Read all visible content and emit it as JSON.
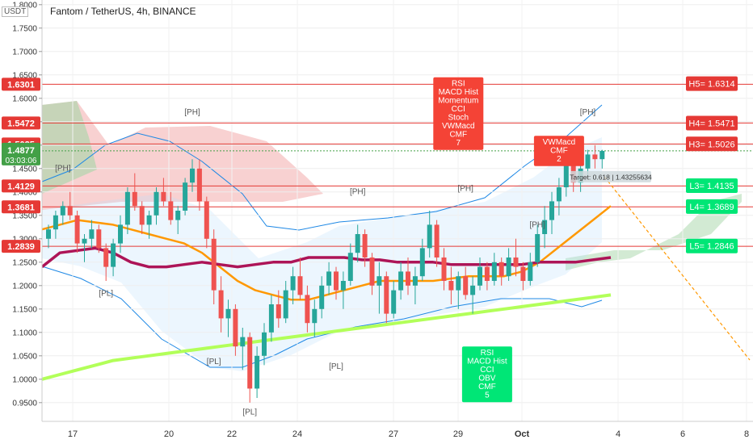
{
  "header": {
    "symbol_title": "Fantom / TetherUS, 4h, BINANCE",
    "currency": "USDT"
  },
  "colors": {
    "up": "#26a69a",
    "down": "#ef5350",
    "resistance": "#e53935",
    "support_tag": "#00e676",
    "sma200": "#ad1457",
    "ema_orange": "#ff9800",
    "lime_ma": "#b2ff59",
    "cloud_red": "#ef9a9a",
    "cloud_green": "#a5d6a7",
    "bollinger_blue": "#1e88e5",
    "price_tag": "#43a047",
    "divergence_bear": "#f44336",
    "divergence_bull": "#00e676"
  },
  "chart_data": {
    "type": "candlestick",
    "title": "Fantom / TetherUS, 4h, BINANCE",
    "ylabel": "USDT",
    "ylim": [
      0.91,
      1.81
    ],
    "y_ticks": [
      "1.8000",
      "1.7500",
      "1.7000",
      "1.6500",
      "1.6000",
      "1.5500",
      "1.5000",
      "1.4500",
      "1.4000",
      "1.3500",
      "1.3000",
      "1.2500",
      "1.2000",
      "1.1500",
      "1.1000",
      "1.0500",
      "1.0000",
      "0.9500"
    ],
    "x_ticks": [
      "17",
      "20",
      "22",
      "24",
      "27",
      "29",
      "Oct",
      "4",
      "6",
      "8"
    ],
    "candles": [
      [
        1.3,
        1.33,
        1.28,
        1.32
      ],
      [
        1.32,
        1.36,
        1.3,
        1.35
      ],
      [
        1.35,
        1.38,
        1.33,
        1.37
      ],
      [
        1.37,
        1.4,
        1.34,
        1.35
      ],
      [
        1.35,
        1.36,
        1.27,
        1.29
      ],
      [
        1.29,
        1.31,
        1.25,
        1.3
      ],
      [
        1.3,
        1.34,
        1.28,
        1.32
      ],
      [
        1.32,
        1.33,
        1.27,
        1.28
      ],
      [
        1.28,
        1.29,
        1.21,
        1.24
      ],
      [
        1.24,
        1.3,
        1.22,
        1.29
      ],
      [
        1.29,
        1.35,
        1.27,
        1.33
      ],
      [
        1.33,
        1.41,
        1.31,
        1.4
      ],
      [
        1.4,
        1.44,
        1.36,
        1.37
      ],
      [
        1.37,
        1.38,
        1.31,
        1.33
      ],
      [
        1.33,
        1.36,
        1.3,
        1.35
      ],
      [
        1.35,
        1.41,
        1.33,
        1.4
      ],
      [
        1.4,
        1.43,
        1.37,
        1.38
      ],
      [
        1.38,
        1.4,
        1.33,
        1.34
      ],
      [
        1.34,
        1.37,
        1.31,
        1.36
      ],
      [
        1.36,
        1.43,
        1.35,
        1.42
      ],
      [
        1.42,
        1.47,
        1.4,
        1.45
      ],
      [
        1.45,
        1.47,
        1.36,
        1.38
      ],
      [
        1.38,
        1.39,
        1.28,
        1.3
      ],
      [
        1.3,
        1.32,
        1.16,
        1.19
      ],
      [
        1.19,
        1.22,
        1.1,
        1.13
      ],
      [
        1.13,
        1.17,
        1.09,
        1.15
      ],
      [
        1.15,
        1.16,
        1.05,
        1.07
      ],
      [
        1.07,
        1.11,
        1.02,
        1.09
      ],
      [
        1.09,
        1.1,
        0.95,
        0.98
      ],
      [
        0.98,
        1.07,
        0.96,
        1.05
      ],
      [
        1.05,
        1.12,
        1.03,
        1.1
      ],
      [
        1.1,
        1.18,
        1.08,
        1.16
      ],
      [
        1.16,
        1.19,
        1.11,
        1.13
      ],
      [
        1.13,
        1.21,
        1.12,
        1.19
      ],
      [
        1.19,
        1.24,
        1.16,
        1.22
      ],
      [
        1.22,
        1.26,
        1.17,
        1.18
      ],
      [
        1.18,
        1.2,
        1.1,
        1.12
      ],
      [
        1.12,
        1.17,
        1.09,
        1.15
      ],
      [
        1.15,
        1.22,
        1.13,
        1.2
      ],
      [
        1.2,
        1.25,
        1.18,
        1.23
      ],
      [
        1.23,
        1.24,
        1.17,
        1.19
      ],
      [
        1.19,
        1.23,
        1.15,
        1.21
      ],
      [
        1.21,
        1.29,
        1.2,
        1.27
      ],
      [
        1.27,
        1.33,
        1.25,
        1.31
      ],
      [
        1.31,
        1.32,
        1.24,
        1.26
      ],
      [
        1.26,
        1.27,
        1.18,
        1.2
      ],
      [
        1.2,
        1.25,
        1.14,
        1.22
      ],
      [
        1.22,
        1.23,
        1.12,
        1.14
      ],
      [
        1.14,
        1.21,
        1.13,
        1.19
      ],
      [
        1.19,
        1.25,
        1.17,
        1.23
      ],
      [
        1.23,
        1.26,
        1.18,
        1.2
      ],
      [
        1.2,
        1.24,
        1.16,
        1.22
      ],
      [
        1.22,
        1.3,
        1.21,
        1.28
      ],
      [
        1.28,
        1.36,
        1.26,
        1.33
      ],
      [
        1.33,
        1.34,
        1.24,
        1.26
      ],
      [
        1.26,
        1.28,
        1.19,
        1.21
      ],
      [
        1.21,
        1.24,
        1.16,
        1.19
      ],
      [
        1.19,
        1.23,
        1.15,
        1.22
      ],
      [
        1.22,
        1.24,
        1.17,
        1.18
      ],
      [
        1.18,
        1.22,
        1.14,
        1.2
      ],
      [
        1.2,
        1.26,
        1.19,
        1.24
      ],
      [
        1.24,
        1.25,
        1.19,
        1.21
      ],
      [
        1.21,
        1.27,
        1.2,
        1.25
      ],
      [
        1.25,
        1.26,
        1.2,
        1.22
      ],
      [
        1.22,
        1.28,
        1.21,
        1.26
      ],
      [
        1.26,
        1.3,
        1.22,
        1.24
      ],
      [
        1.24,
        1.25,
        1.19,
        1.21
      ],
      [
        1.21,
        1.27,
        1.2,
        1.25
      ],
      [
        1.25,
        1.33,
        1.24,
        1.31
      ],
      [
        1.31,
        1.37,
        1.28,
        1.34
      ],
      [
        1.34,
        1.4,
        1.31,
        1.38
      ],
      [
        1.38,
        1.43,
        1.35,
        1.41
      ],
      [
        1.41,
        1.49,
        1.39,
        1.46
      ],
      [
        1.46,
        1.48,
        1.4,
        1.42
      ],
      [
        1.42,
        1.47,
        1.4,
        1.45
      ],
      [
        1.45,
        1.49,
        1.43,
        1.48
      ],
      [
        1.48,
        1.5,
        1.45,
        1.47
      ],
      [
        1.47,
        1.49,
        1.45,
        1.4877
      ]
    ],
    "current_price": {
      "value": 1.4877,
      "label": "1.4877",
      "countdown": "03:03:06"
    },
    "price_level_tags": [
      {
        "value": 1.6301,
        "label": "1.6301"
      },
      {
        "value": 1.5472,
        "label": "1.5472"
      },
      {
        "value": 1.5025,
        "label": "1.5025"
      },
      {
        "value": 1.4129,
        "label": "1.4129"
      },
      {
        "value": 1.3681,
        "label": "1.3681"
      },
      {
        "value": 1.2839,
        "label": "1.2839"
      }
    ],
    "camarilla_levels": [
      {
        "value": 1.6314,
        "label": "H5= 1.6314",
        "kind": "resistance"
      },
      {
        "value": 1.5471,
        "label": "H4= 1.5471",
        "kind": "resistance"
      },
      {
        "value": 1.5026,
        "label": "H3= 1.5026",
        "kind": "resistance"
      },
      {
        "value": 1.4135,
        "label": "L3= 1.4135",
        "kind": "support"
      },
      {
        "value": 1.3689,
        "label": "L4= 1.3689",
        "kind": "support"
      },
      {
        "value": 1.2846,
        "label": "L5= 1.2846",
        "kind": "support"
      }
    ],
    "pivot_labels": [
      {
        "text": "[PH]",
        "i": 2,
        "value": 1.445
      },
      {
        "text": "[PH]",
        "i": 20,
        "value": 1.565
      },
      {
        "text": "[PH]",
        "i": 43,
        "value": 1.395
      },
      {
        "text": "[PH]",
        "i": 58,
        "value": 1.402
      },
      {
        "text": "[PH]",
        "i": 68,
        "value": 1.325
      },
      {
        "text": "[PH]",
        "i": 75,
        "value": 1.565
      },
      {
        "text": "[PL]",
        "i": 8,
        "value": 1.178
      },
      {
        "text": "[PL]",
        "i": 23,
        "value": 1.032
      },
      {
        "text": "[PL]",
        "i": 28,
        "value": 0.925
      },
      {
        "text": "[PL]",
        "i": 40,
        "value": 1.022
      }
    ],
    "divergence_tags": [
      {
        "lines": [
          "RSI",
          "MACD Hist",
          "Momentum",
          "CCI",
          "Stoch",
          "VWMacd",
          "CMF",
          "7"
        ],
        "i": 57,
        "value": 1.645,
        "kind": "bearish"
      },
      {
        "lines": [
          "VWMacd",
          "CMF",
          "2"
        ],
        "i": 71,
        "value": 1.52,
        "kind": "bearish"
      },
      {
        "lines": [
          "RSI",
          "MACD Hist",
          "CCI",
          "OBV",
          "CMF",
          "5"
        ],
        "i": 61,
        "value": 1.07,
        "kind": "bullish"
      }
    ],
    "projection": {
      "label": "Target: 0.618 | 1.43255634",
      "value": 1.4326
    },
    "ma_series": {
      "sma200": [
        1.24,
        1.27,
        1.275,
        1.28,
        1.27,
        1.25,
        1.24,
        1.24,
        1.245,
        1.25,
        1.245,
        1.24,
        1.245,
        1.25,
        1.25,
        1.26,
        1.26,
        1.26,
        1.255,
        1.255,
        1.25,
        1.25,
        1.25,
        1.245,
        1.245,
        1.245,
        1.245,
        1.245,
        1.25,
        1.25,
        1.25,
        1.255,
        1.26
      ],
      "ema_orange": [
        1.32,
        1.33,
        1.34,
        1.335,
        1.33,
        1.32,
        1.31,
        1.3,
        1.29,
        1.27,
        1.24,
        1.21,
        1.19,
        1.18,
        1.17,
        1.17,
        1.18,
        1.19,
        1.2,
        1.21,
        1.21,
        1.21,
        1.21,
        1.215,
        1.22,
        1.22,
        1.22,
        1.23,
        1.25,
        1.28,
        1.31,
        1.34,
        1.37
      ],
      "lime": [
        1.0,
        1.01,
        1.02,
        1.03,
        1.04,
        1.045,
        1.05,
        1.055,
        1.06,
        1.065,
        1.07,
        1.075,
        1.08,
        1.085,
        1.09,
        1.095,
        1.1,
        1.105,
        1.11,
        1.115,
        1.12,
        1.125,
        1.13,
        1.135,
        1.14,
        1.145,
        1.15,
        1.155,
        1.16,
        1.165,
        1.17,
        1.175,
        1.18
      ]
    }
  }
}
